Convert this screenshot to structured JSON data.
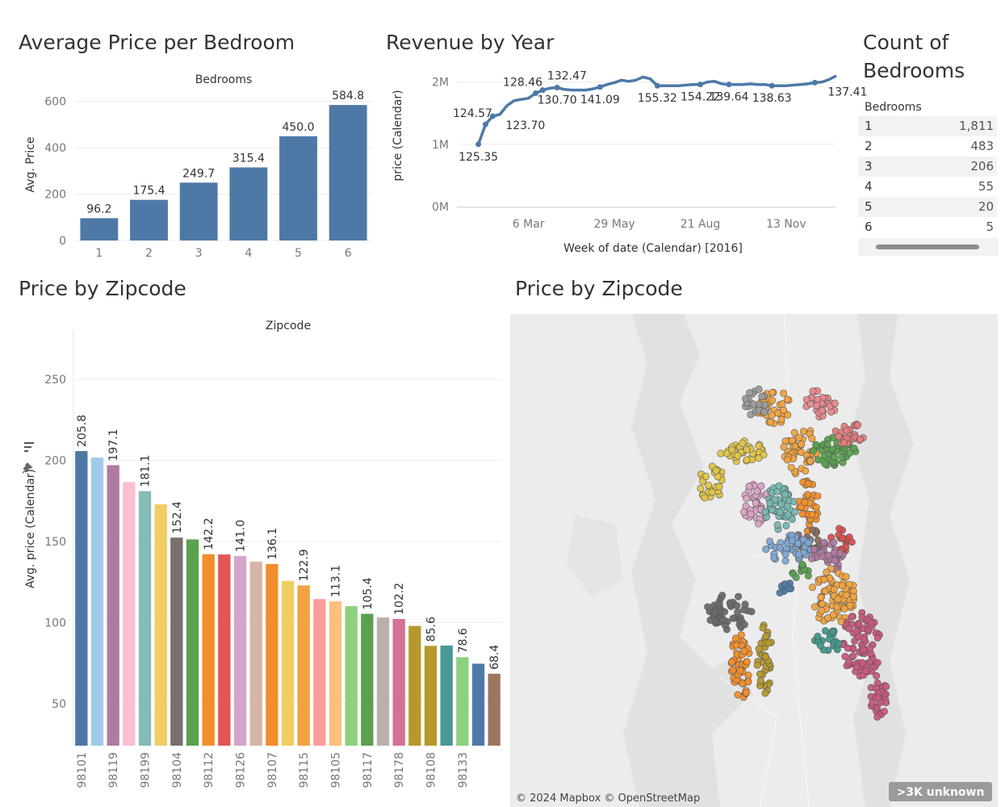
{
  "titles": {
    "bedroom_price": "Average Price per Bedroom",
    "revenue": "Revenue by Year",
    "count_line1": "Count of",
    "count_line2": "Bedrooms",
    "zip_bar": "Price by Zipcode",
    "zip_map": "Price by Zipcode"
  },
  "count_table": {
    "header": "Bedrooms",
    "rows": [
      {
        "bedrooms": "1",
        "count": "1,811"
      },
      {
        "bedrooms": "2",
        "count": "483"
      },
      {
        "bedrooms": "3",
        "count": "206"
      },
      {
        "bedrooms": "4",
        "count": "55"
      },
      {
        "bedrooms": "5",
        "count": "20"
      },
      {
        "bedrooms": "6",
        "count": "5"
      }
    ]
  },
  "map": {
    "attribution": "© 2024 Mapbox © OpenStreetMap",
    "unknown_badge": ">3K unknown"
  },
  "chart_data": [
    {
      "id": "bedroom",
      "type": "bar",
      "title": "Average Price per Bedroom",
      "column_header": "Bedrooms",
      "ylabel": "Avg. Price",
      "categories": [
        "1",
        "2",
        "3",
        "4",
        "5",
        "6"
      ],
      "values": [
        96.2,
        175.4,
        249.7,
        315.4,
        450.0,
        584.8
      ],
      "labels": [
        "96.2",
        "175.4",
        "249.7",
        "315.4",
        "450.0",
        "584.8"
      ],
      "yticks": [
        "0",
        "200",
        "400",
        "600"
      ],
      "ylim": [
        0,
        620
      ],
      "color": "#4e79a7",
      "grid": true
    },
    {
      "id": "revenue",
      "type": "line",
      "title": "Revenue by Year",
      "xlabel": "Week of date (Calendar) [2016]",
      "ylabel": "price (Calendar)",
      "xticks": [
        {
          "label": "6 Mar",
          "week": 10
        },
        {
          "label": "29 May",
          "week": 22
        },
        {
          "label": "21 Aug",
          "week": 34
        },
        {
          "label": "13 Nov",
          "week": 46
        }
      ],
      "yticks": [
        {
          "label": "0M",
          "value": 0
        },
        {
          "label": "1M",
          "value": 1000000
        },
        {
          "label": "2M",
          "value": 2000000
        }
      ],
      "ylim": [
        0,
        2150000
      ],
      "xlim": [
        0,
        53
      ],
      "color": "#4e79a7",
      "series": [
        {
          "week": 3,
          "value": 1000000
        },
        {
          "week": 4,
          "value": 1320000
        },
        {
          "week": 5,
          "value": 1450000
        },
        {
          "week": 6,
          "value": 1480000
        },
        {
          "week": 7,
          "value": 1620000
        },
        {
          "week": 8,
          "value": 1700000
        },
        {
          "week": 9,
          "value": 1720000
        },
        {
          "week": 10,
          "value": 1740000
        },
        {
          "week": 11,
          "value": 1820000
        },
        {
          "week": 12,
          "value": 1870000
        },
        {
          "week": 13,
          "value": 1900000
        },
        {
          "week": 14,
          "value": 1910000
        },
        {
          "week": 15,
          "value": 1880000
        },
        {
          "week": 16,
          "value": 1870000
        },
        {
          "week": 17,
          "value": 1870000
        },
        {
          "week": 18,
          "value": 1870000
        },
        {
          "week": 19,
          "value": 1890000
        },
        {
          "week": 20,
          "value": 1920000
        },
        {
          "week": 21,
          "value": 1960000
        },
        {
          "week": 22,
          "value": 1990000
        },
        {
          "week": 23,
          "value": 2030000
        },
        {
          "week": 24,
          "value": 2010000
        },
        {
          "week": 25,
          "value": 2030000
        },
        {
          "week": 26,
          "value": 2080000
        },
        {
          "week": 27,
          "value": 2050000
        },
        {
          "week": 28,
          "value": 1940000
        },
        {
          "week": 29,
          "value": 1940000
        },
        {
          "week": 30,
          "value": 1940000
        },
        {
          "week": 31,
          "value": 1940000
        },
        {
          "week": 32,
          "value": 1950000
        },
        {
          "week": 33,
          "value": 1960000
        },
        {
          "week": 34,
          "value": 1960000
        },
        {
          "week": 35,
          "value": 2000000
        },
        {
          "week": 36,
          "value": 2010000
        },
        {
          "week": 37,
          "value": 1970000
        },
        {
          "week": 38,
          "value": 1960000
        },
        {
          "week": 39,
          "value": 1960000
        },
        {
          "week": 40,
          "value": 1960000
        },
        {
          "week": 41,
          "value": 1970000
        },
        {
          "week": 42,
          "value": 1960000
        },
        {
          "week": 43,
          "value": 1960000
        },
        {
          "week": 44,
          "value": 1940000
        },
        {
          "week": 45,
          "value": 1940000
        },
        {
          "week": 46,
          "value": 1940000
        },
        {
          "week": 47,
          "value": 1950000
        },
        {
          "week": 48,
          "value": 1960000
        },
        {
          "week": 49,
          "value": 1970000
        },
        {
          "week": 50,
          "value": 1990000
        },
        {
          "week": 51,
          "value": 2000000
        },
        {
          "week": 52,
          "value": 2040000
        },
        {
          "week": 53,
          "value": 2100000
        }
      ],
      "markers": [
        {
          "week": 3,
          "value": 1000000,
          "label": "125.35",
          "pos": "below"
        },
        {
          "week": 4,
          "value": 1320000,
          "label": "124.57",
          "pos": "aboveleft"
        },
        {
          "week": 5,
          "value": 1450000,
          "label": "123.70",
          "pos": "belowright"
        },
        {
          "week": 11,
          "value": 1820000,
          "label": "128.46",
          "pos": "aboveleft"
        },
        {
          "week": 12,
          "value": 1870000,
          "label": "132.47",
          "pos": "aboveright"
        },
        {
          "week": 14,
          "value": 1910000,
          "label": "130.70",
          "pos": "below"
        },
        {
          "week": 20,
          "value": 1920000,
          "label": "141.09",
          "pos": "below"
        },
        {
          "week": 28,
          "value": 1940000,
          "label": "155.32",
          "pos": "below"
        },
        {
          "week": 34,
          "value": 1960000,
          "label": "154.22",
          "pos": "below"
        },
        {
          "week": 38,
          "value": 1960000,
          "label": "139.64",
          "pos": "below"
        },
        {
          "week": 44,
          "value": 1940000,
          "label": "138.63",
          "pos": "below"
        },
        {
          "week": 50,
          "value": 1990000,
          "label": "137.41",
          "pos": "belowright"
        }
      ]
    },
    {
      "id": "zipcode",
      "type": "bar",
      "title": "Price by Zipcode",
      "column_header": "Zipcode",
      "ylabel": "Avg. price (Calendar)",
      "yticks": [
        "50",
        "100",
        "150",
        "200",
        "250"
      ],
      "ylim": [
        24,
        280
      ],
      "visible_tick_labels": [
        "98101",
        "98119",
        "98199",
        "98104",
        "98112",
        "98126",
        "98107",
        "98115",
        "98105",
        "98117",
        "98178",
        "98108",
        "98133"
      ],
      "values": [
        205.8,
        201.8,
        197.1,
        186.7,
        181.1,
        173.0,
        152.4,
        151.3,
        142.2,
        142.0,
        141.0,
        137.5,
        136.1,
        125.7,
        122.9,
        114.5,
        113.1,
        110.1,
        105.4,
        103.1,
        102.2,
        97.9,
        85.6,
        85.8,
        78.6,
        74.6,
        68.4
      ],
      "labels": [
        "205.8",
        "",
        "197.1",
        "",
        "181.1",
        "",
        "152.4",
        "",
        "142.2",
        "",
        "141.0",
        "",
        "136.1",
        "",
        "122.9",
        "",
        "113.1",
        "",
        "105.4",
        "",
        "102.2",
        "",
        "85.6",
        "",
        "78.6",
        "",
        "68.4"
      ],
      "colors": [
        "#4e79a7",
        "#a0cbe8",
        "#b07aa1",
        "#fabfd2",
        "#86bcb6",
        "#f1ce63",
        "#79706e",
        "#59a14f",
        "#f28e2b",
        "#e15759",
        "#d4a6c8",
        "#d7b5a6",
        "#f28e2b",
        "#f1ce63",
        "#f1a340",
        "#ff9d9a",
        "#ffbe7d",
        "#8cd17d",
        "#59a14f",
        "#bab0ac",
        "#d37295",
        "#b6992d",
        "#b6992d",
        "#499894",
        "#8cd17d",
        "#4e79a7",
        "#9d7660"
      ],
      "grid": true
    }
  ]
}
